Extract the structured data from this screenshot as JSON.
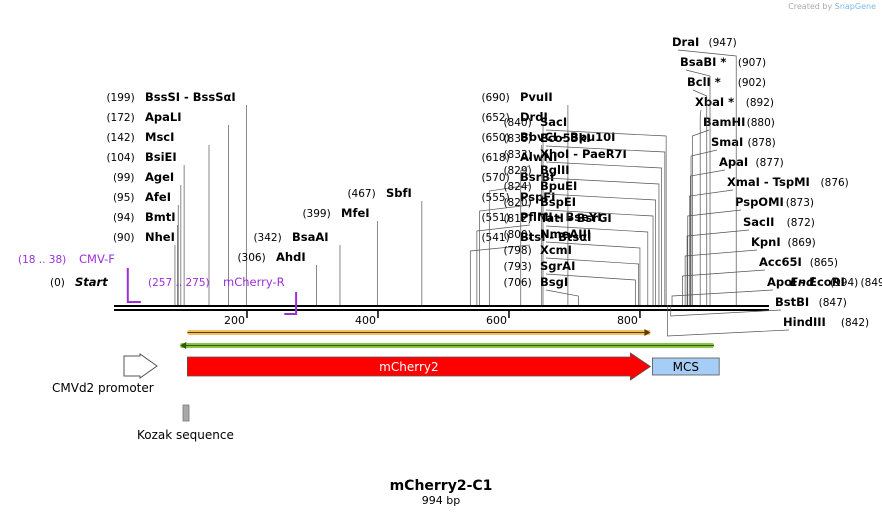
{
  "credit": {
    "prefix": "Created by",
    "brand": "SnapGene"
  },
  "title": "mCherry2-C1",
  "subtitle": "994 bp",
  "length": 994,
  "ruler": {
    "ticks": [
      200,
      400,
      600,
      800
    ]
  },
  "ends": {
    "start": {
      "pos": "(0)",
      "label": "Start"
    },
    "end": {
      "pos": "(994)",
      "label": "End"
    }
  },
  "enzymes": [
    {
      "name": "NheI",
      "pos": 90
    },
    {
      "name": "BmtI",
      "pos": 94
    },
    {
      "name": "AfeI",
      "pos": 95
    },
    {
      "name": "AgeI",
      "pos": 99
    },
    {
      "name": "BsiEI",
      "pos": 104
    },
    {
      "name": "MscI",
      "pos": 142
    },
    {
      "name": "ApaLI",
      "pos": 172
    },
    {
      "name": "BssSI - BssSαI",
      "pos": 199
    },
    {
      "name": "AhdI",
      "pos": 306
    },
    {
      "name": "BsaAI",
      "pos": 342
    },
    {
      "name": "MfeI",
      "pos": 399
    },
    {
      "name": "SbfI",
      "pos": 467
    },
    {
      "name": "BtsI - BtsαI",
      "pos": 541
    },
    {
      "name": "PflMI - BseYI",
      "pos": 551
    },
    {
      "name": "PspFI",
      "pos": 555
    },
    {
      "name": "BsrBI",
      "pos": 570
    },
    {
      "name": "AlwNI",
      "pos": 618
    },
    {
      "name": "BbvCI - Bpu10I",
      "pos": 650
    },
    {
      "name": "DrdI",
      "pos": 652
    },
    {
      "name": "PvuII",
      "pos": 690
    },
    {
      "name": "BsgI",
      "pos": 706
    },
    {
      "name": "SgrAI",
      "pos": 793
    },
    {
      "name": "XcmI",
      "pos": 798
    },
    {
      "name": "NmeAIII",
      "pos": 800
    },
    {
      "name": "TatI - BsrGI",
      "pos": 812
    },
    {
      "name": "BspEI",
      "pos": 820
    },
    {
      "name": "BpuEI",
      "pos": 824
    },
    {
      "name": "BglII",
      "pos": 829
    },
    {
      "name": "XhoI - PaeR7I",
      "pos": 833
    },
    {
      "name": "Eco53kI",
      "pos": 838
    },
    {
      "name": "SacI",
      "pos": 840
    },
    {
      "name": "HindIII",
      "pos": 842
    },
    {
      "name": "BstBI",
      "pos": 847
    },
    {
      "name": "ApoI - EcoRI",
      "pos": 849
    },
    {
      "name": "Acc65I",
      "pos": 865
    },
    {
      "name": "KpnI",
      "pos": 869
    },
    {
      "name": "SacII",
      "pos": 872
    },
    {
      "name": "PspOMI",
      "pos": 873
    },
    {
      "name": "XmaI - TspMI",
      "pos": 876
    },
    {
      "name": "ApaI",
      "pos": 877
    },
    {
      "name": "SmaI",
      "pos": 878
    },
    {
      "name": "BamHI",
      "pos": 880
    },
    {
      "name": "XbaI *",
      "pos": 892
    },
    {
      "name": "BclI *",
      "pos": 902
    },
    {
      "name": "BsaBI *",
      "pos": 907
    },
    {
      "name": "DraI",
      "pos": 947
    }
  ],
  "primers": [
    {
      "name": "CMV-F",
      "range": "(18 .. 38)",
      "start": 18,
      "end": 38,
      "direction": "forward"
    },
    {
      "name": "mCherry-R",
      "range": "(257 .. 275)",
      "start": 257,
      "end": 275,
      "direction": "reverse"
    }
  ],
  "features": [
    {
      "name": "CMVd2 promoter",
      "start": 1,
      "end": 52,
      "type": "promoter"
    },
    {
      "name": "mCherry2",
      "start": 109,
      "end": 816,
      "type": "cds"
    },
    {
      "name": "MCS",
      "start": 816,
      "end": 921,
      "type": "mcs"
    },
    {
      "name": "Kozak sequence",
      "start": 100,
      "end": 110,
      "type": "kozak"
    }
  ],
  "orf_bars": [
    {
      "name": "orf-forward",
      "start": 109,
      "end": 816,
      "color": "#f0c060",
      "direction": "forward"
    },
    {
      "name": "orf-reverse",
      "start": 98,
      "end": 913,
      "color": "#8bc34a",
      "direction": "reverse"
    }
  ],
  "colors": {
    "primer": "#9b30d9",
    "cds": "#ff0000",
    "mcs": "#a6cdf5",
    "text": "#000000",
    "line": "#555555"
  }
}
